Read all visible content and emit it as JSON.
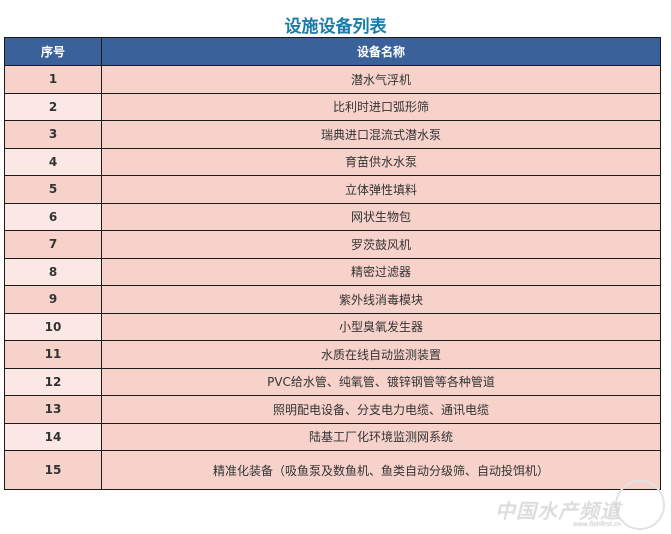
{
  "title": "设施设备列表",
  "table": {
    "headers": [
      "序号",
      "设备名称"
    ],
    "rows": [
      {
        "no": "1",
        "name": "潜水气浮机"
      },
      {
        "no": "2",
        "name": "比利时进口弧形筛"
      },
      {
        "no": "3",
        "name": "瑞典进口混流式潜水泵"
      },
      {
        "no": "4",
        "name": "育苗供水水泵"
      },
      {
        "no": "5",
        "name": "立体弹性填料"
      },
      {
        "no": "6",
        "name": "网状生物包"
      },
      {
        "no": "7",
        "name": "罗茨鼓风机"
      },
      {
        "no": "8",
        "name": "精密过滤器"
      },
      {
        "no": "9",
        "name": "紫外线消毒模块"
      },
      {
        "no": "10",
        "name": "小型臭氧发生器"
      },
      {
        "no": "11",
        "name": "水质在线自动监测装置"
      },
      {
        "no": "12",
        "name": "PVC给水管、纯氧管、镀锌钢管等各种管道"
      },
      {
        "no": "13",
        "name": "照明配电设备、分支电力电缆、通讯电缆"
      },
      {
        "no": "14",
        "name": "陆基工厂化环境监测网系统"
      },
      {
        "no": "15",
        "name": "精准化装备（吸鱼泵及数鱼机、鱼类自动分级筛、自动投饵机）"
      }
    ]
  },
  "watermark": {
    "text": "中国水产频道",
    "url": "www.fishfirst.cn"
  },
  "colors": {
    "title": "#1a7ca8",
    "header": "#3a619a",
    "row": "#f6d2ca",
    "row_alt_num": "#fbe8e4"
  }
}
